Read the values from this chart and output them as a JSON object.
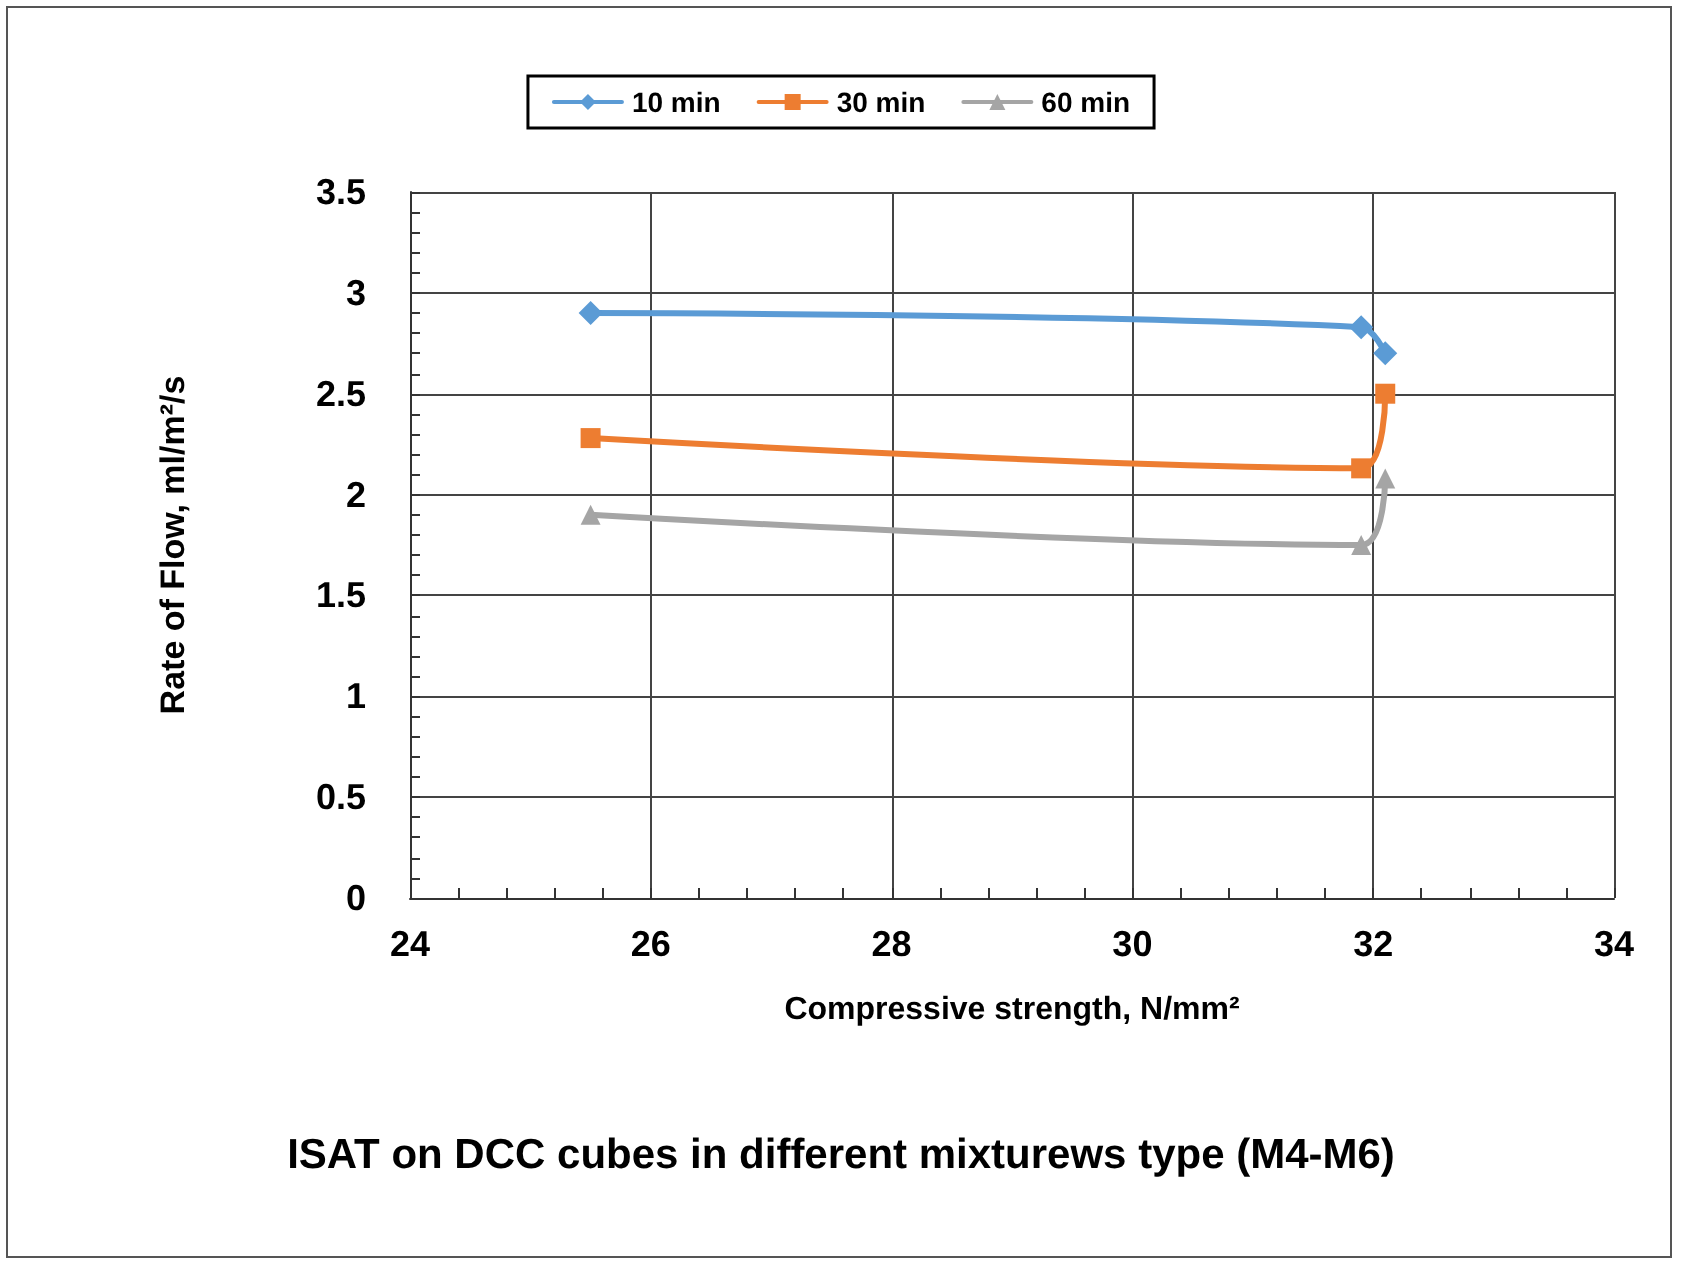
{
  "chart_data": {
    "type": "line",
    "title": "ISAT on DCC cubes in different mixturews type (M4-M6)",
    "xlabel": "Compressive strength, N/mm²",
    "ylabel": "Rate of Flow, ml/m²/s",
    "x": [
      25.5,
      31.9,
      32.1
    ],
    "series": [
      {
        "name": "10 min",
        "color": "#5b9bd5",
        "marker": "diamond",
        "values": [
          2.9,
          2.83,
          2.7
        ]
      },
      {
        "name": "30 min",
        "color": "#ed7d31",
        "marker": "square",
        "values": [
          2.28,
          2.13,
          2.5
        ]
      },
      {
        "name": "60 min",
        "color": "#a5a5a5",
        "marker": "triangle",
        "values": [
          1.9,
          1.75,
          2.08
        ]
      }
    ],
    "xlim": [
      24,
      34
    ],
    "xticks": [
      24,
      26,
      28,
      30,
      32,
      34
    ],
    "ylim": [
      0,
      3.5
    ],
    "yticks": [
      0,
      0.5,
      1,
      1.5,
      2,
      2.5,
      3,
      3.5
    ],
    "grid": true,
    "legend": "top",
    "line_style": "solid"
  }
}
